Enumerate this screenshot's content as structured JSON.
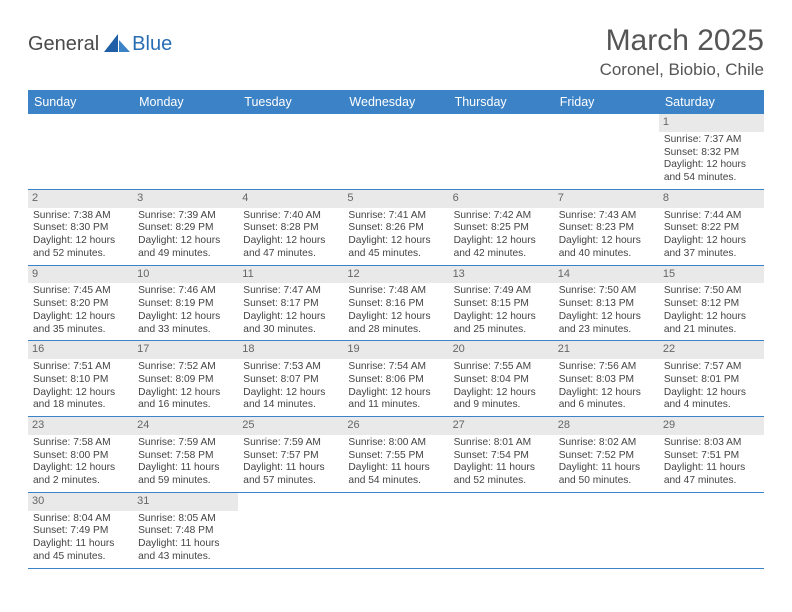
{
  "logo": {
    "part1": "General",
    "part2": "Blue"
  },
  "title": "March 2025",
  "location": "Coronel, Biobio, Chile",
  "header_bg": "#3c82c6",
  "daynum_bg": "#e9e9e9",
  "weekdays": [
    "Sunday",
    "Monday",
    "Tuesday",
    "Wednesday",
    "Thursday",
    "Friday",
    "Saturday"
  ],
  "weeks": [
    [
      null,
      null,
      null,
      null,
      null,
      null,
      {
        "n": "1",
        "sr": "Sunrise: 7:37 AM",
        "ss": "Sunset: 8:32 PM",
        "d1": "Daylight: 12 hours",
        "d2": "and 54 minutes."
      }
    ],
    [
      {
        "n": "2",
        "sr": "Sunrise: 7:38 AM",
        "ss": "Sunset: 8:30 PM",
        "d1": "Daylight: 12 hours",
        "d2": "and 52 minutes."
      },
      {
        "n": "3",
        "sr": "Sunrise: 7:39 AM",
        "ss": "Sunset: 8:29 PM",
        "d1": "Daylight: 12 hours",
        "d2": "and 49 minutes."
      },
      {
        "n": "4",
        "sr": "Sunrise: 7:40 AM",
        "ss": "Sunset: 8:28 PM",
        "d1": "Daylight: 12 hours",
        "d2": "and 47 minutes."
      },
      {
        "n": "5",
        "sr": "Sunrise: 7:41 AM",
        "ss": "Sunset: 8:26 PM",
        "d1": "Daylight: 12 hours",
        "d2": "and 45 minutes."
      },
      {
        "n": "6",
        "sr": "Sunrise: 7:42 AM",
        "ss": "Sunset: 8:25 PM",
        "d1": "Daylight: 12 hours",
        "d2": "and 42 minutes."
      },
      {
        "n": "7",
        "sr": "Sunrise: 7:43 AM",
        "ss": "Sunset: 8:23 PM",
        "d1": "Daylight: 12 hours",
        "d2": "and 40 minutes."
      },
      {
        "n": "8",
        "sr": "Sunrise: 7:44 AM",
        "ss": "Sunset: 8:22 PM",
        "d1": "Daylight: 12 hours",
        "d2": "and 37 minutes."
      }
    ],
    [
      {
        "n": "9",
        "sr": "Sunrise: 7:45 AM",
        "ss": "Sunset: 8:20 PM",
        "d1": "Daylight: 12 hours",
        "d2": "and 35 minutes."
      },
      {
        "n": "10",
        "sr": "Sunrise: 7:46 AM",
        "ss": "Sunset: 8:19 PM",
        "d1": "Daylight: 12 hours",
        "d2": "and 33 minutes."
      },
      {
        "n": "11",
        "sr": "Sunrise: 7:47 AM",
        "ss": "Sunset: 8:17 PM",
        "d1": "Daylight: 12 hours",
        "d2": "and 30 minutes."
      },
      {
        "n": "12",
        "sr": "Sunrise: 7:48 AM",
        "ss": "Sunset: 8:16 PM",
        "d1": "Daylight: 12 hours",
        "d2": "and 28 minutes."
      },
      {
        "n": "13",
        "sr": "Sunrise: 7:49 AM",
        "ss": "Sunset: 8:15 PM",
        "d1": "Daylight: 12 hours",
        "d2": "and 25 minutes."
      },
      {
        "n": "14",
        "sr": "Sunrise: 7:50 AM",
        "ss": "Sunset: 8:13 PM",
        "d1": "Daylight: 12 hours",
        "d2": "and 23 minutes."
      },
      {
        "n": "15",
        "sr": "Sunrise: 7:50 AM",
        "ss": "Sunset: 8:12 PM",
        "d1": "Daylight: 12 hours",
        "d2": "and 21 minutes."
      }
    ],
    [
      {
        "n": "16",
        "sr": "Sunrise: 7:51 AM",
        "ss": "Sunset: 8:10 PM",
        "d1": "Daylight: 12 hours",
        "d2": "and 18 minutes."
      },
      {
        "n": "17",
        "sr": "Sunrise: 7:52 AM",
        "ss": "Sunset: 8:09 PM",
        "d1": "Daylight: 12 hours",
        "d2": "and 16 minutes."
      },
      {
        "n": "18",
        "sr": "Sunrise: 7:53 AM",
        "ss": "Sunset: 8:07 PM",
        "d1": "Daylight: 12 hours",
        "d2": "and 14 minutes."
      },
      {
        "n": "19",
        "sr": "Sunrise: 7:54 AM",
        "ss": "Sunset: 8:06 PM",
        "d1": "Daylight: 12 hours",
        "d2": "and 11 minutes."
      },
      {
        "n": "20",
        "sr": "Sunrise: 7:55 AM",
        "ss": "Sunset: 8:04 PM",
        "d1": "Daylight: 12 hours",
        "d2": "and 9 minutes."
      },
      {
        "n": "21",
        "sr": "Sunrise: 7:56 AM",
        "ss": "Sunset: 8:03 PM",
        "d1": "Daylight: 12 hours",
        "d2": "and 6 minutes."
      },
      {
        "n": "22",
        "sr": "Sunrise: 7:57 AM",
        "ss": "Sunset: 8:01 PM",
        "d1": "Daylight: 12 hours",
        "d2": "and 4 minutes."
      }
    ],
    [
      {
        "n": "23",
        "sr": "Sunrise: 7:58 AM",
        "ss": "Sunset: 8:00 PM",
        "d1": "Daylight: 12 hours",
        "d2": "and 2 minutes."
      },
      {
        "n": "24",
        "sr": "Sunrise: 7:59 AM",
        "ss": "Sunset: 7:58 PM",
        "d1": "Daylight: 11 hours",
        "d2": "and 59 minutes."
      },
      {
        "n": "25",
        "sr": "Sunrise: 7:59 AM",
        "ss": "Sunset: 7:57 PM",
        "d1": "Daylight: 11 hours",
        "d2": "and 57 minutes."
      },
      {
        "n": "26",
        "sr": "Sunrise: 8:00 AM",
        "ss": "Sunset: 7:55 PM",
        "d1": "Daylight: 11 hours",
        "d2": "and 54 minutes."
      },
      {
        "n": "27",
        "sr": "Sunrise: 8:01 AM",
        "ss": "Sunset: 7:54 PM",
        "d1": "Daylight: 11 hours",
        "d2": "and 52 minutes."
      },
      {
        "n": "28",
        "sr": "Sunrise: 8:02 AM",
        "ss": "Sunset: 7:52 PM",
        "d1": "Daylight: 11 hours",
        "d2": "and 50 minutes."
      },
      {
        "n": "29",
        "sr": "Sunrise: 8:03 AM",
        "ss": "Sunset: 7:51 PM",
        "d1": "Daylight: 11 hours",
        "d2": "and 47 minutes."
      }
    ],
    [
      {
        "n": "30",
        "sr": "Sunrise: 8:04 AM",
        "ss": "Sunset: 7:49 PM",
        "d1": "Daylight: 11 hours",
        "d2": "and 45 minutes."
      },
      {
        "n": "31",
        "sr": "Sunrise: 8:05 AM",
        "ss": "Sunset: 7:48 PM",
        "d1": "Daylight: 11 hours",
        "d2": "and 43 minutes."
      },
      null,
      null,
      null,
      null,
      null
    ]
  ]
}
